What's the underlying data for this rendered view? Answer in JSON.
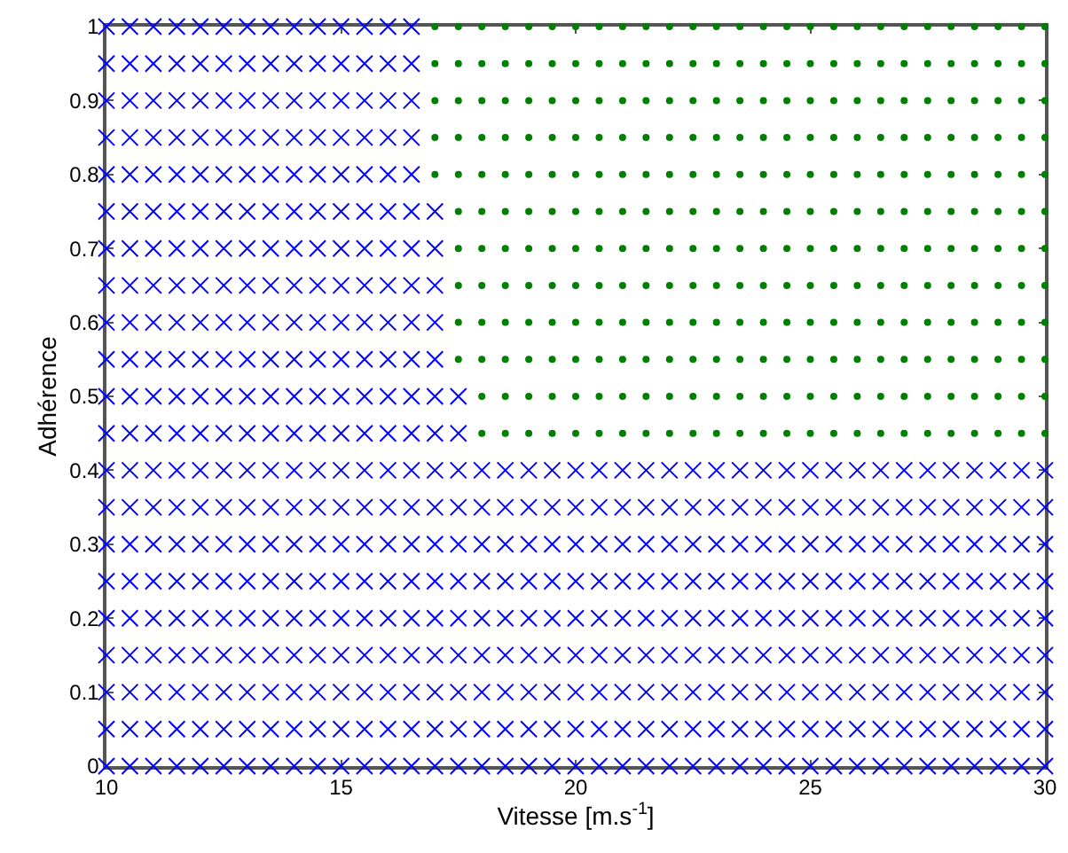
{
  "chart_data": {
    "type": "scatter",
    "xlabel": "Vitesse [m.s$^{-1}$]",
    "ylabel": "Adhérence",
    "xlim": [
      10,
      30
    ],
    "xticks": [
      10,
      15,
      20,
      25,
      30
    ],
    "ylim": [
      0,
      1
    ],
    "yticks": [
      0,
      0.1,
      0.2,
      0.3,
      0.4,
      0.5,
      0.6,
      0.7,
      0.8,
      0.9,
      1
    ],
    "series": [
      {
        "color": "#0000ff",
        "marker": "cross",
        "x": [
          10,
          10.5,
          11,
          11.5,
          12,
          12.5,
          13,
          13.5,
          14,
          14.5,
          15,
          15.5,
          16,
          16.5,
          17,
          17.5,
          18,
          18.5,
          19,
          19.5,
          20,
          20.5,
          21,
          21.5,
          22,
          22.5,
          23,
          23.5,
          24,
          24.5,
          25,
          25.5,
          26,
          26.5,
          27,
          27.5,
          28,
          28.5,
          29,
          29.5,
          30
        ],
        "values": [
          0,
          0,
          0,
          0,
          0,
          0,
          0,
          0,
          0,
          0,
          0,
          0,
          0,
          0,
          0,
          0,
          0,
          0,
          0,
          0,
          0,
          0,
          0,
          0,
          0,
          0,
          0,
          0,
          0,
          0,
          0,
          0,
          0,
          0,
          0,
          0,
          0,
          0,
          0,
          0,
          0
        ]
      },
      {
        "color": "#0000ff",
        "marker": "cross",
        "x": [
          10,
          10.5,
          11,
          11.5,
          12,
          12.5,
          13,
          13.5,
          14,
          14.5,
          15,
          15.5,
          16,
          16.5,
          17,
          17.5,
          18,
          18.5,
          19,
          19.5,
          20,
          20.5,
          21,
          21.5,
          22,
          22.5,
          23,
          23.5,
          24,
          24.5,
          25,
          25.5,
          26,
          26.5,
          27,
          27.5,
          28,
          28.5,
          29,
          29.5,
          30
        ],
        "values": [
          0.05,
          0.05,
          0.05,
          0.05,
          0.05,
          0.05,
          0.05,
          0.05,
          0.05,
          0.05,
          0.05,
          0.05,
          0.05,
          0.05,
          0.05,
          0.05,
          0.05,
          0.05,
          0.05,
          0.05,
          0.05,
          0.05,
          0.05,
          0.05,
          0.05,
          0.05,
          0.05,
          0.05,
          0.05,
          0.05,
          0.05,
          0.05,
          0.05,
          0.05,
          0.05,
          0.05,
          0.05,
          0.05,
          0.05,
          0.05,
          0.05
        ]
      },
      {
        "color": "#0000ff",
        "marker": "cross",
        "x": [
          10,
          10.5,
          11,
          11.5,
          12,
          12.5,
          13,
          13.5,
          14,
          14.5,
          15,
          15.5,
          16,
          16.5,
          17,
          17.5,
          18,
          18.5,
          19,
          19.5,
          20,
          20.5,
          21,
          21.5,
          22,
          22.5,
          23,
          23.5,
          24,
          24.5,
          25,
          25.5,
          26,
          26.5,
          27,
          27.5,
          28,
          28.5,
          29,
          29.5,
          30
        ],
        "values": [
          0.1,
          0.1,
          0.1,
          0.1,
          0.1,
          0.1,
          0.1,
          0.1,
          0.1,
          0.1,
          0.1,
          0.1,
          0.1,
          0.1,
          0.1,
          0.1,
          0.1,
          0.1,
          0.1,
          0.1,
          0.1,
          0.1,
          0.1,
          0.1,
          0.1,
          0.1,
          0.1,
          0.1,
          0.1,
          0.1,
          0.1,
          0.1,
          0.1,
          0.1,
          0.1,
          0.1,
          0.1,
          0.1,
          0.1,
          0.1,
          0.1
        ]
      },
      {
        "color": "#0000ff",
        "marker": "cross",
        "x": [
          10,
          10.5,
          11,
          11.5,
          12,
          12.5,
          13,
          13.5,
          14,
          14.5,
          15,
          15.5,
          16,
          16.5,
          17,
          17.5,
          18,
          18.5,
          19,
          19.5,
          20,
          20.5,
          21,
          21.5,
          22,
          22.5,
          23,
          23.5,
          24,
          24.5,
          25,
          25.5,
          26,
          26.5,
          27,
          27.5,
          28,
          28.5,
          29,
          29.5,
          30
        ],
        "values": [
          0.15,
          0.15,
          0.15,
          0.15,
          0.15,
          0.15,
          0.15,
          0.15,
          0.15,
          0.15,
          0.15,
          0.15,
          0.15,
          0.15,
          0.15,
          0.15,
          0.15,
          0.15,
          0.15,
          0.15,
          0.15,
          0.15,
          0.15,
          0.15,
          0.15,
          0.15,
          0.15,
          0.15,
          0.15,
          0.15,
          0.15,
          0.15,
          0.15,
          0.15,
          0.15,
          0.15,
          0.15,
          0.15,
          0.15,
          0.15,
          0.15
        ]
      },
      {
        "color": "#0000ff",
        "marker": "cross",
        "x": [
          10,
          10.5,
          11,
          11.5,
          12,
          12.5,
          13,
          13.5,
          14,
          14.5,
          15,
          15.5,
          16,
          16.5,
          17,
          17.5,
          18,
          18.5,
          19,
          19.5,
          20,
          20.5,
          21,
          21.5,
          22,
          22.5,
          23,
          23.5,
          24,
          24.5,
          25,
          25.5,
          26,
          26.5,
          27,
          27.5,
          28,
          28.5,
          29,
          29.5,
          30
        ],
        "values": [
          0.2,
          0.2,
          0.2,
          0.2,
          0.2,
          0.2,
          0.2,
          0.2,
          0.2,
          0.2,
          0.2,
          0.2,
          0.2,
          0.2,
          0.2,
          0.2,
          0.2,
          0.2,
          0.2,
          0.2,
          0.2,
          0.2,
          0.2,
          0.2,
          0.2,
          0.2,
          0.2,
          0.2,
          0.2,
          0.2,
          0.2,
          0.2,
          0.2,
          0.2,
          0.2,
          0.2,
          0.2,
          0.2,
          0.2,
          0.2,
          0.2
        ]
      },
      {
        "color": "#0000ff",
        "marker": "cross",
        "x": [
          10,
          10.5,
          11,
          11.5,
          12,
          12.5,
          13,
          13.5,
          14,
          14.5,
          15,
          15.5,
          16,
          16.5,
          17,
          17.5,
          18,
          18.5,
          19,
          19.5,
          20,
          20.5,
          21,
          21.5,
          22,
          22.5,
          23,
          23.5,
          24,
          24.5,
          25,
          25.5,
          26,
          26.5,
          27,
          27.5,
          28,
          28.5,
          29,
          29.5,
          30
        ],
        "values": [
          0.25,
          0.25,
          0.25,
          0.25,
          0.25,
          0.25,
          0.25,
          0.25,
          0.25,
          0.25,
          0.25,
          0.25,
          0.25,
          0.25,
          0.25,
          0.25,
          0.25,
          0.25,
          0.25,
          0.25,
          0.25,
          0.25,
          0.25,
          0.25,
          0.25,
          0.25,
          0.25,
          0.25,
          0.25,
          0.25,
          0.25,
          0.25,
          0.25,
          0.25,
          0.25,
          0.25,
          0.25,
          0.25,
          0.25,
          0.25,
          0.25
        ]
      },
      {
        "color": "#0000ff",
        "marker": "cross",
        "x": [
          10,
          10.5,
          11,
          11.5,
          12,
          12.5,
          13,
          13.5,
          14,
          14.5,
          15,
          15.5,
          16,
          16.5,
          17,
          17.5,
          18,
          18.5,
          19,
          19.5,
          20,
          20.5,
          21,
          21.5,
          22,
          22.5,
          23,
          23.5,
          24,
          24.5,
          25,
          25.5,
          26,
          26.5,
          27,
          27.5,
          28,
          28.5,
          29,
          29.5,
          30
        ],
        "values": [
          0.3,
          0.3,
          0.3,
          0.3,
          0.3,
          0.3,
          0.3,
          0.3,
          0.3,
          0.3,
          0.3,
          0.3,
          0.3,
          0.3,
          0.3,
          0.3,
          0.3,
          0.3,
          0.3,
          0.3,
          0.3,
          0.3,
          0.3,
          0.3,
          0.3,
          0.3,
          0.3,
          0.3,
          0.3,
          0.3,
          0.3,
          0.3,
          0.3,
          0.3,
          0.3,
          0.3,
          0.3,
          0.3,
          0.3,
          0.3,
          0.3
        ]
      },
      {
        "color": "#0000ff",
        "marker": "cross",
        "x": [
          10,
          10.5,
          11,
          11.5,
          12,
          12.5,
          13,
          13.5,
          14,
          14.5,
          15,
          15.5,
          16,
          16.5,
          17,
          17.5,
          18,
          18.5,
          19,
          19.5,
          20,
          20.5,
          21,
          21.5,
          22,
          22.5,
          23,
          23.5,
          24,
          24.5,
          25,
          25.5,
          26,
          26.5,
          27,
          27.5,
          28,
          28.5,
          29,
          29.5,
          30
        ],
        "values": [
          0.35,
          0.35,
          0.35,
          0.35,
          0.35,
          0.35,
          0.35,
          0.35,
          0.35,
          0.35,
          0.35,
          0.35,
          0.35,
          0.35,
          0.35,
          0.35,
          0.35,
          0.35,
          0.35,
          0.35,
          0.35,
          0.35,
          0.35,
          0.35,
          0.35,
          0.35,
          0.35,
          0.35,
          0.35,
          0.35,
          0.35,
          0.35,
          0.35,
          0.35,
          0.35,
          0.35,
          0.35,
          0.35,
          0.35,
          0.35,
          0.35
        ]
      },
      {
        "color": "#0000ff",
        "marker": "cross",
        "x": [
          10,
          10.5,
          11,
          11.5,
          12,
          12.5,
          13,
          13.5,
          14,
          14.5,
          15,
          15.5,
          16,
          16.5,
          17,
          17.5,
          18,
          18.5,
          19,
          19.5,
          20,
          20.5,
          21,
          21.5,
          22,
          22.5,
          23,
          23.5,
          24,
          24.5,
          25,
          25.5,
          26,
          26.5,
          27,
          27.5,
          28,
          28.5,
          29,
          29.5,
          30
        ],
        "values": [
          0.4,
          0.4,
          0.4,
          0.4,
          0.4,
          0.4,
          0.4,
          0.4,
          0.4,
          0.4,
          0.4,
          0.4,
          0.4,
          0.4,
          0.4,
          0.4,
          0.4,
          0.4,
          0.4,
          0.4,
          0.4,
          0.4,
          0.4,
          0.4,
          0.4,
          0.4,
          0.4,
          0.4,
          0.4,
          0.4,
          0.4,
          0.4,
          0.4,
          0.4,
          0.4,
          0.4,
          0.4,
          0.4,
          0.4,
          0.4,
          0.4
        ]
      },
      {
        "color": "#0000ff",
        "marker": "cross",
        "x": [
          10,
          10.5,
          11,
          11.5,
          12,
          12.5,
          13,
          13.5,
          14,
          14.5,
          15,
          15.5,
          16,
          16.5,
          17,
          17.5
        ],
        "values": [
          0.45,
          0.45,
          0.45,
          0.45,
          0.45,
          0.45,
          0.45,
          0.45,
          0.45,
          0.45,
          0.45,
          0.45,
          0.45,
          0.45,
          0.45,
          0.45
        ]
      },
      {
        "color": "#0000ff",
        "marker": "cross",
        "x": [
          10,
          10.5,
          11,
          11.5,
          12,
          12.5,
          13,
          13.5,
          14,
          14.5,
          15,
          15.5,
          16,
          16.5,
          17,
          17.5
        ],
        "values": [
          0.5,
          0.5,
          0.5,
          0.5,
          0.5,
          0.5,
          0.5,
          0.5,
          0.5,
          0.5,
          0.5,
          0.5,
          0.5,
          0.5,
          0.5,
          0.5
        ]
      },
      {
        "color": "#0000ff",
        "marker": "cross",
        "x": [
          10,
          10.5,
          11,
          11.5,
          12,
          12.5,
          13,
          13.5,
          14,
          14.5,
          15,
          15.5,
          16,
          16.5,
          17
        ],
        "values": [
          0.55,
          0.55,
          0.55,
          0.55,
          0.55,
          0.55,
          0.55,
          0.55,
          0.55,
          0.55,
          0.55,
          0.55,
          0.55,
          0.55,
          0.55
        ]
      },
      {
        "color": "#0000ff",
        "marker": "cross",
        "x": [
          10,
          10.5,
          11,
          11.5,
          12,
          12.5,
          13,
          13.5,
          14,
          14.5,
          15,
          15.5,
          16,
          16.5,
          17
        ],
        "values": [
          0.6,
          0.6,
          0.6,
          0.6,
          0.6,
          0.6,
          0.6,
          0.6,
          0.6,
          0.6,
          0.6,
          0.6,
          0.6,
          0.6,
          0.6
        ]
      },
      {
        "color": "#0000ff",
        "marker": "cross",
        "x": [
          10,
          10.5,
          11,
          11.5,
          12,
          12.5,
          13,
          13.5,
          14,
          14.5,
          15,
          15.5,
          16,
          16.5,
          17
        ],
        "values": [
          0.65,
          0.65,
          0.65,
          0.65,
          0.65,
          0.65,
          0.65,
          0.65,
          0.65,
          0.65,
          0.65,
          0.65,
          0.65,
          0.65,
          0.65
        ]
      },
      {
        "color": "#0000ff",
        "marker": "cross",
        "x": [
          10,
          10.5,
          11,
          11.5,
          12,
          12.5,
          13,
          13.5,
          14,
          14.5,
          15,
          15.5,
          16,
          16.5,
          17
        ],
        "values": [
          0.7,
          0.7,
          0.7,
          0.7,
          0.7,
          0.7,
          0.7,
          0.7,
          0.7,
          0.7,
          0.7,
          0.7,
          0.7,
          0.7,
          0.7
        ]
      },
      {
        "color": "#0000ff",
        "marker": "cross",
        "x": [
          10,
          10.5,
          11,
          11.5,
          12,
          12.5,
          13,
          13.5,
          14,
          14.5,
          15,
          15.5,
          16,
          16.5,
          17
        ],
        "values": [
          0.75,
          0.75,
          0.75,
          0.75,
          0.75,
          0.75,
          0.75,
          0.75,
          0.75,
          0.75,
          0.75,
          0.75,
          0.75,
          0.75,
          0.75
        ]
      },
      {
        "color": "#0000ff",
        "marker": "cross",
        "x": [
          10,
          10.5,
          11,
          11.5,
          12,
          12.5,
          13,
          13.5,
          14,
          14.5,
          15,
          15.5,
          16,
          16.5
        ],
        "values": [
          0.8,
          0.8,
          0.8,
          0.8,
          0.8,
          0.8,
          0.8,
          0.8,
          0.8,
          0.8,
          0.8,
          0.8,
          0.8,
          0.8
        ]
      },
      {
        "color": "#0000ff",
        "marker": "cross",
        "x": [
          10,
          10.5,
          11,
          11.5,
          12,
          12.5,
          13,
          13.5,
          14,
          14.5,
          15,
          15.5,
          16,
          16.5
        ],
        "values": [
          0.85,
          0.85,
          0.85,
          0.85,
          0.85,
          0.85,
          0.85,
          0.85,
          0.85,
          0.85,
          0.85,
          0.85,
          0.85,
          0.85
        ]
      },
      {
        "color": "#0000ff",
        "marker": "cross",
        "x": [
          10,
          10.5,
          11,
          11.5,
          12,
          12.5,
          13,
          13.5,
          14,
          14.5,
          15,
          15.5,
          16,
          16.5
        ],
        "values": [
          0.9,
          0.9,
          0.9,
          0.9,
          0.9,
          0.9,
          0.9,
          0.9,
          0.9,
          0.9,
          0.9,
          0.9,
          0.9,
          0.9
        ]
      },
      {
        "color": "#0000ff",
        "marker": "cross",
        "x": [
          10,
          10.5,
          11,
          11.5,
          12,
          12.5,
          13,
          13.5,
          14,
          14.5,
          15,
          15.5,
          16,
          16.5
        ],
        "values": [
          0.95,
          0.95,
          0.95,
          0.95,
          0.95,
          0.95,
          0.95,
          0.95,
          0.95,
          0.95,
          0.95,
          0.95,
          0.95,
          0.95
        ]
      },
      {
        "color": "#0000ff",
        "marker": "cross",
        "x": [
          10,
          10.5,
          11,
          11.5,
          12,
          12.5,
          13,
          13.5,
          14,
          14.5,
          15,
          15.5,
          16,
          16.5
        ],
        "values": [
          1,
          1,
          1,
          1,
          1,
          1,
          1,
          1,
          1,
          1,
          1,
          1,
          1,
          1
        ]
      },
      {
        "color": "#008000",
        "marker": "circle",
        "x": [
          18,
          18.5,
          19,
          19.5,
          20,
          20.5,
          21,
          21.5,
          22,
          22.5,
          23,
          23.5,
          24,
          24.5,
          25,
          25.5,
          26,
          26.5,
          27,
          27.5,
          28,
          28.5,
          29,
          29.5,
          30
        ],
        "values": [
          0.45,
          0.45,
          0.45,
          0.45,
          0.45,
          0.45,
          0.45,
          0.45,
          0.45,
          0.45,
          0.45,
          0.45,
          0.45,
          0.45,
          0.45,
          0.45,
          0.45,
          0.45,
          0.45,
          0.45,
          0.45,
          0.45,
          0.45,
          0.45,
          0.45
        ]
      },
      {
        "color": "#008000",
        "marker": "circle",
        "x": [
          18,
          18.5,
          19,
          19.5,
          20,
          20.5,
          21,
          21.5,
          22,
          22.5,
          23,
          23.5,
          24,
          24.5,
          25,
          25.5,
          26,
          26.5,
          27,
          27.5,
          28,
          28.5,
          29,
          29.5,
          30
        ],
        "values": [
          0.5,
          0.5,
          0.5,
          0.5,
          0.5,
          0.5,
          0.5,
          0.5,
          0.5,
          0.5,
          0.5,
          0.5,
          0.5,
          0.5,
          0.5,
          0.5,
          0.5,
          0.5,
          0.5,
          0.5,
          0.5,
          0.5,
          0.5,
          0.5,
          0.5
        ]
      },
      {
        "color": "#008000",
        "marker": "circle",
        "x": [
          17.5,
          18,
          18.5,
          19,
          19.5,
          20,
          20.5,
          21,
          21.5,
          22,
          22.5,
          23,
          23.5,
          24,
          24.5,
          25,
          25.5,
          26,
          26.5,
          27,
          27.5,
          28,
          28.5,
          29,
          29.5,
          30
        ],
        "values": [
          0.55,
          0.55,
          0.55,
          0.55,
          0.55,
          0.55,
          0.55,
          0.55,
          0.55,
          0.55,
          0.55,
          0.55,
          0.55,
          0.55,
          0.55,
          0.55,
          0.55,
          0.55,
          0.55,
          0.55,
          0.55,
          0.55,
          0.55,
          0.55,
          0.55,
          0.55
        ]
      },
      {
        "color": "#008000",
        "marker": "circle",
        "x": [
          17.5,
          18,
          18.5,
          19,
          19.5,
          20,
          20.5,
          21,
          21.5,
          22,
          22.5,
          23,
          23.5,
          24,
          24.5,
          25,
          25.5,
          26,
          26.5,
          27,
          27.5,
          28,
          28.5,
          29,
          29.5,
          30
        ],
        "values": [
          0.6,
          0.6,
          0.6,
          0.6,
          0.6,
          0.6,
          0.6,
          0.6,
          0.6,
          0.6,
          0.6,
          0.6,
          0.6,
          0.6,
          0.6,
          0.6,
          0.6,
          0.6,
          0.6,
          0.6,
          0.6,
          0.6,
          0.6,
          0.6,
          0.6,
          0.6
        ]
      },
      {
        "color": "#008000",
        "marker": "circle",
        "x": [
          17.5,
          18,
          18.5,
          19,
          19.5,
          20,
          20.5,
          21,
          21.5,
          22,
          22.5,
          23,
          23.5,
          24,
          24.5,
          25,
          25.5,
          26,
          26.5,
          27,
          27.5,
          28,
          28.5,
          29,
          29.5,
          30
        ],
        "values": [
          0.65,
          0.65,
          0.65,
          0.65,
          0.65,
          0.65,
          0.65,
          0.65,
          0.65,
          0.65,
          0.65,
          0.65,
          0.65,
          0.65,
          0.65,
          0.65,
          0.65,
          0.65,
          0.65,
          0.65,
          0.65,
          0.65,
          0.65,
          0.65,
          0.65,
          0.65
        ]
      },
      {
        "color": "#008000",
        "marker": "circle",
        "x": [
          17.5,
          18,
          18.5,
          19,
          19.5,
          20,
          20.5,
          21,
          21.5,
          22,
          22.5,
          23,
          23.5,
          24,
          24.5,
          25,
          25.5,
          26,
          26.5,
          27,
          27.5,
          28,
          28.5,
          29,
          29.5,
          30
        ],
        "values": [
          0.7,
          0.7,
          0.7,
          0.7,
          0.7,
          0.7,
          0.7,
          0.7,
          0.7,
          0.7,
          0.7,
          0.7,
          0.7,
          0.7,
          0.7,
          0.7,
          0.7,
          0.7,
          0.7,
          0.7,
          0.7,
          0.7,
          0.7,
          0.7,
          0.7,
          0.7
        ]
      },
      {
        "color": "#008000",
        "marker": "circle",
        "x": [
          17.5,
          18,
          18.5,
          19,
          19.5,
          20,
          20.5,
          21,
          21.5,
          22,
          22.5,
          23,
          23.5,
          24,
          24.5,
          25,
          25.5,
          26,
          26.5,
          27,
          27.5,
          28,
          28.5,
          29,
          29.5,
          30
        ],
        "values": [
          0.75,
          0.75,
          0.75,
          0.75,
          0.75,
          0.75,
          0.75,
          0.75,
          0.75,
          0.75,
          0.75,
          0.75,
          0.75,
          0.75,
          0.75,
          0.75,
          0.75,
          0.75,
          0.75,
          0.75,
          0.75,
          0.75,
          0.75,
          0.75,
          0.75,
          0.75
        ]
      },
      {
        "color": "#008000",
        "marker": "circle",
        "x": [
          17,
          17.5,
          18,
          18.5,
          19,
          19.5,
          20,
          20.5,
          21,
          21.5,
          22,
          22.5,
          23,
          23.5,
          24,
          24.5,
          25,
          25.5,
          26,
          26.5,
          27,
          27.5,
          28,
          28.5,
          29,
          29.5,
          30
        ],
        "values": [
          0.8,
          0.8,
          0.8,
          0.8,
          0.8,
          0.8,
          0.8,
          0.8,
          0.8,
          0.8,
          0.8,
          0.8,
          0.8,
          0.8,
          0.8,
          0.8,
          0.8,
          0.8,
          0.8,
          0.8,
          0.8,
          0.8,
          0.8,
          0.8,
          0.8,
          0.8,
          0.8
        ]
      },
      {
        "color": "#008000",
        "marker": "circle",
        "x": [
          17,
          17.5,
          18,
          18.5,
          19,
          19.5,
          20,
          20.5,
          21,
          21.5,
          22,
          22.5,
          23,
          23.5,
          24,
          24.5,
          25,
          25.5,
          26,
          26.5,
          27,
          27.5,
          28,
          28.5,
          29,
          29.5,
          30
        ],
        "values": [
          0.85,
          0.85,
          0.85,
          0.85,
          0.85,
          0.85,
          0.85,
          0.85,
          0.85,
          0.85,
          0.85,
          0.85,
          0.85,
          0.85,
          0.85,
          0.85,
          0.85,
          0.85,
          0.85,
          0.85,
          0.85,
          0.85,
          0.85,
          0.85,
          0.85,
          0.85,
          0.85
        ]
      },
      {
        "color": "#008000",
        "marker": "circle",
        "x": [
          17,
          17.5,
          18,
          18.5,
          19,
          19.5,
          20,
          20.5,
          21,
          21.5,
          22,
          22.5,
          23,
          23.5,
          24,
          24.5,
          25,
          25.5,
          26,
          26.5,
          27,
          27.5,
          28,
          28.5,
          29,
          29.5,
          30
        ],
        "values": [
          0.9,
          0.9,
          0.9,
          0.9,
          0.9,
          0.9,
          0.9,
          0.9,
          0.9,
          0.9,
          0.9,
          0.9,
          0.9,
          0.9,
          0.9,
          0.9,
          0.9,
          0.9,
          0.9,
          0.9,
          0.9,
          0.9,
          0.9,
          0.9,
          0.9,
          0.9,
          0.9
        ]
      },
      {
        "color": "#008000",
        "marker": "circle",
        "x": [
          17,
          17.5,
          18,
          18.5,
          19,
          19.5,
          20,
          20.5,
          21,
          21.5,
          22,
          22.5,
          23,
          23.5,
          24,
          24.5,
          25,
          25.5,
          26,
          26.5,
          27,
          27.5,
          28,
          28.5,
          29,
          29.5,
          30
        ],
        "values": [
          0.95,
          0.95,
          0.95,
          0.95,
          0.95,
          0.95,
          0.95,
          0.95,
          0.95,
          0.95,
          0.95,
          0.95,
          0.95,
          0.95,
          0.95,
          0.95,
          0.95,
          0.95,
          0.95,
          0.95,
          0.95,
          0.95,
          0.95,
          0.95,
          0.95,
          0.95,
          0.95
        ]
      },
      {
        "color": "#008000",
        "marker": "circle",
        "x": [
          17,
          17.5,
          18,
          18.5,
          19,
          19.5,
          20,
          20.5,
          21,
          21.5,
          22,
          22.5,
          23,
          23.5,
          24,
          24.5,
          25,
          25.5,
          26,
          26.5,
          27,
          27.5,
          28,
          28.5,
          29,
          29.5,
          30
        ],
        "values": [
          1,
          1,
          1,
          1,
          1,
          1,
          1,
          1,
          1,
          1,
          1,
          1,
          1,
          1,
          1,
          1,
          1,
          1,
          1,
          1,
          1,
          1,
          1,
          1,
          1,
          1,
          1
        ]
      }
    ]
  }
}
